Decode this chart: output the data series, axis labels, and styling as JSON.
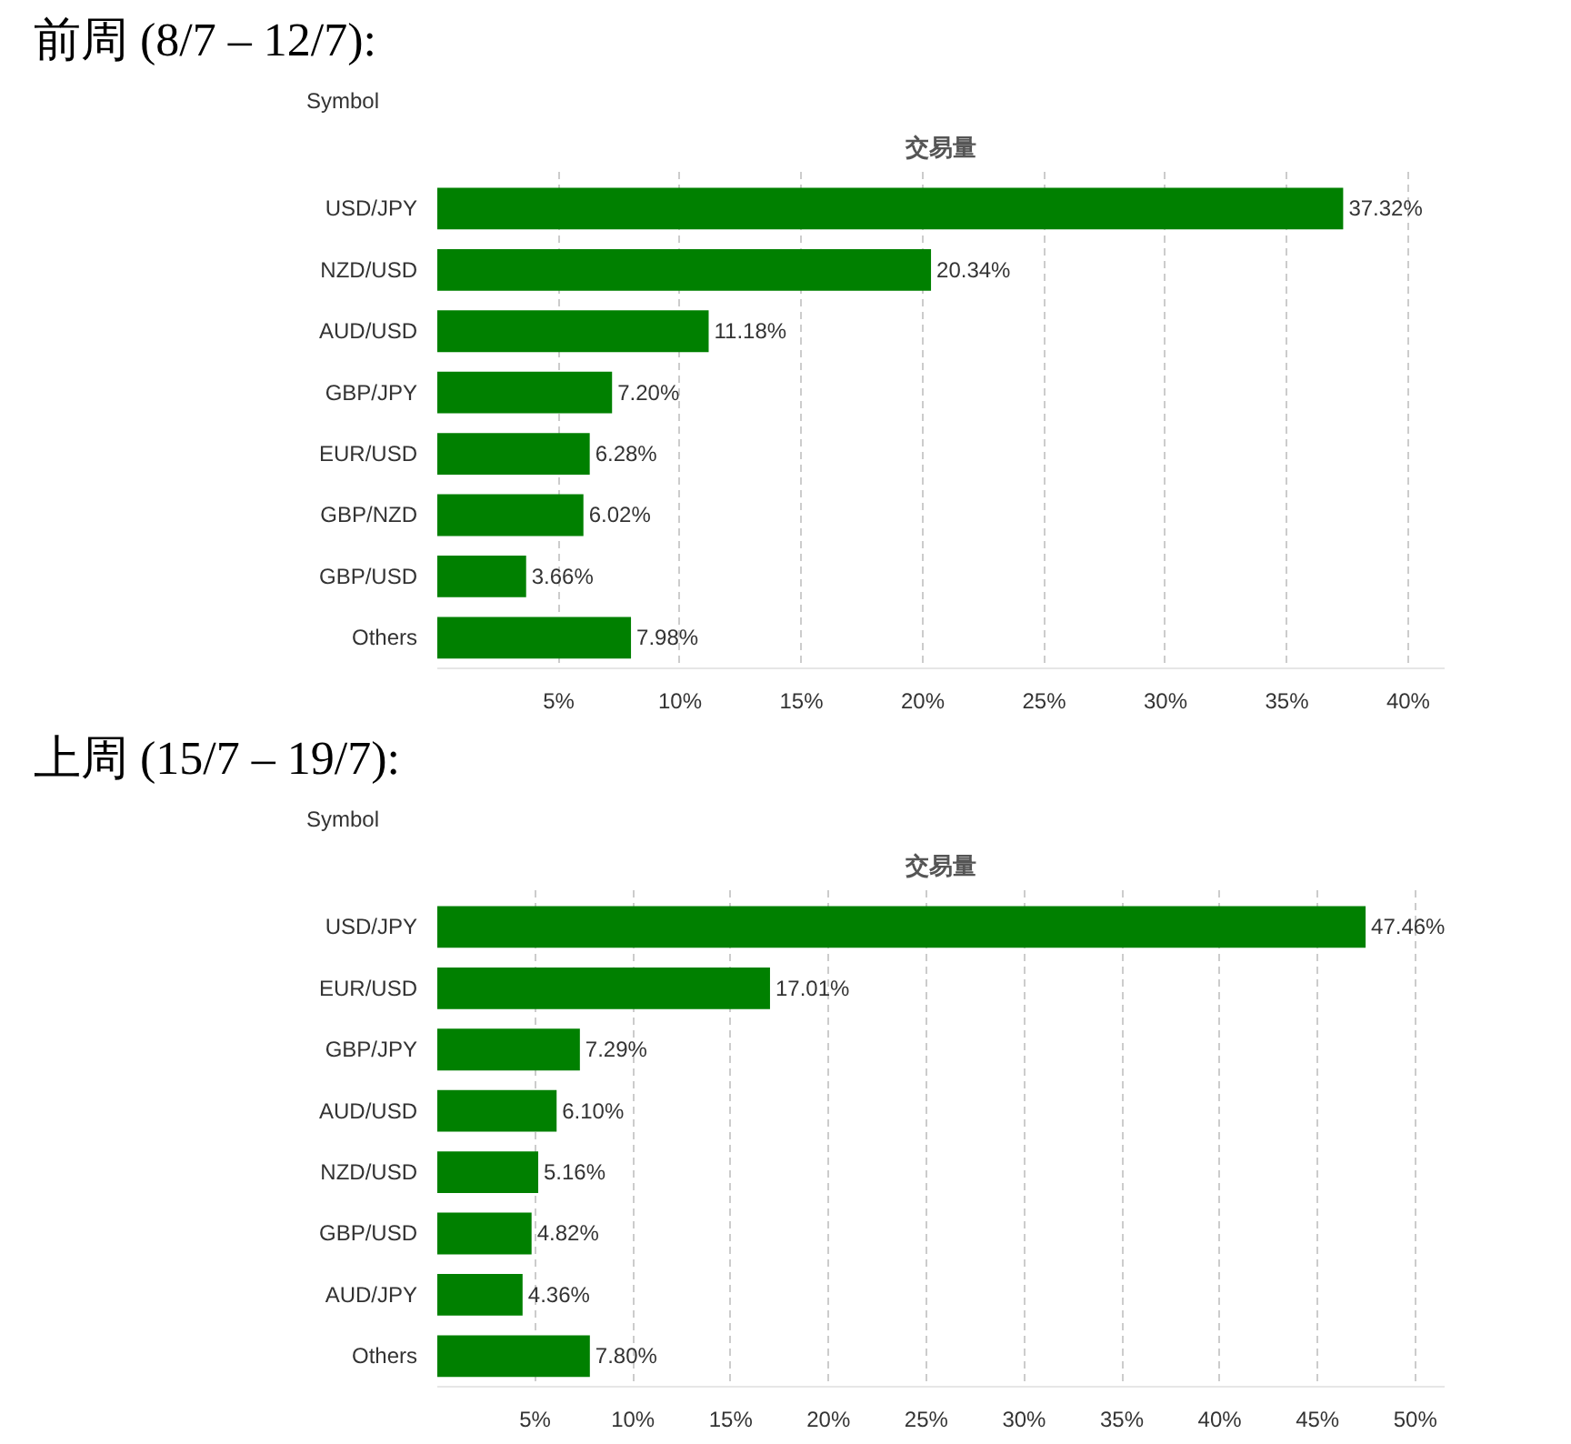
{
  "chart_data": [
    {
      "type": "bar",
      "orientation": "horizontal",
      "title": "前周 (8/7 – 12/7):",
      "subtitle": "交易量",
      "ylabel": "Symbol",
      "categories": [
        "USD/JPY",
        "NZD/USD",
        "AUD/USD",
        "GBP/JPY",
        "EUR/USD",
        "GBP/NZD",
        "GBP/USD",
        "Others"
      ],
      "values": [
        37.32,
        20.34,
        11.18,
        7.2,
        6.28,
        6.02,
        3.66,
        7.98
      ],
      "value_labels": [
        "37.32%",
        "20.34%",
        "11.18%",
        "7.20%",
        "6.28%",
        "6.02%",
        "3.66%",
        "7.98%"
      ],
      "color": "#008000",
      "xlim": [
        0,
        41.5
      ],
      "xticks": [
        {
          "value": 5,
          "label": "5%"
        },
        {
          "value": 10,
          "label": "10%"
        },
        {
          "value": 15,
          "label": "15%"
        },
        {
          "value": 20,
          "label": "20%"
        },
        {
          "value": 25,
          "label": "25%"
        },
        {
          "value": 30,
          "label": "30%"
        },
        {
          "value": 35,
          "label": "35%"
        },
        {
          "value": 40,
          "label": "40%"
        }
      ],
      "grid": "x",
      "legend": false
    },
    {
      "type": "bar",
      "orientation": "horizontal",
      "title": "上周 (15/7 – 19/7):",
      "subtitle": "交易量",
      "ylabel": "Symbol",
      "categories": [
        "USD/JPY",
        "EUR/USD",
        "GBP/JPY",
        "AUD/USD",
        "NZD/USD",
        "GBP/USD",
        "AUD/JPY",
        "Others"
      ],
      "values": [
        47.46,
        17.01,
        7.29,
        6.1,
        5.16,
        4.82,
        4.36,
        7.8
      ],
      "value_labels": [
        "47.46%",
        "17.01%",
        "7.29%",
        "6.10%",
        "5.16%",
        "4.82%",
        "4.36%",
        "7.80%"
      ],
      "color": "#008000",
      "xlim": [
        0,
        51.5
      ],
      "xticks": [
        {
          "value": 5,
          "label": "5%"
        },
        {
          "value": 10,
          "label": "10%"
        },
        {
          "value": 15,
          "label": "15%"
        },
        {
          "value": 20,
          "label": "20%"
        },
        {
          "value": 25,
          "label": "25%"
        },
        {
          "value": 30,
          "label": "30%"
        },
        {
          "value": 35,
          "label": "35%"
        },
        {
          "value": 40,
          "label": "40%"
        },
        {
          "value": 45,
          "label": "45%"
        },
        {
          "value": 50,
          "label": "50%"
        }
      ],
      "grid": "x",
      "legend": false
    }
  ]
}
